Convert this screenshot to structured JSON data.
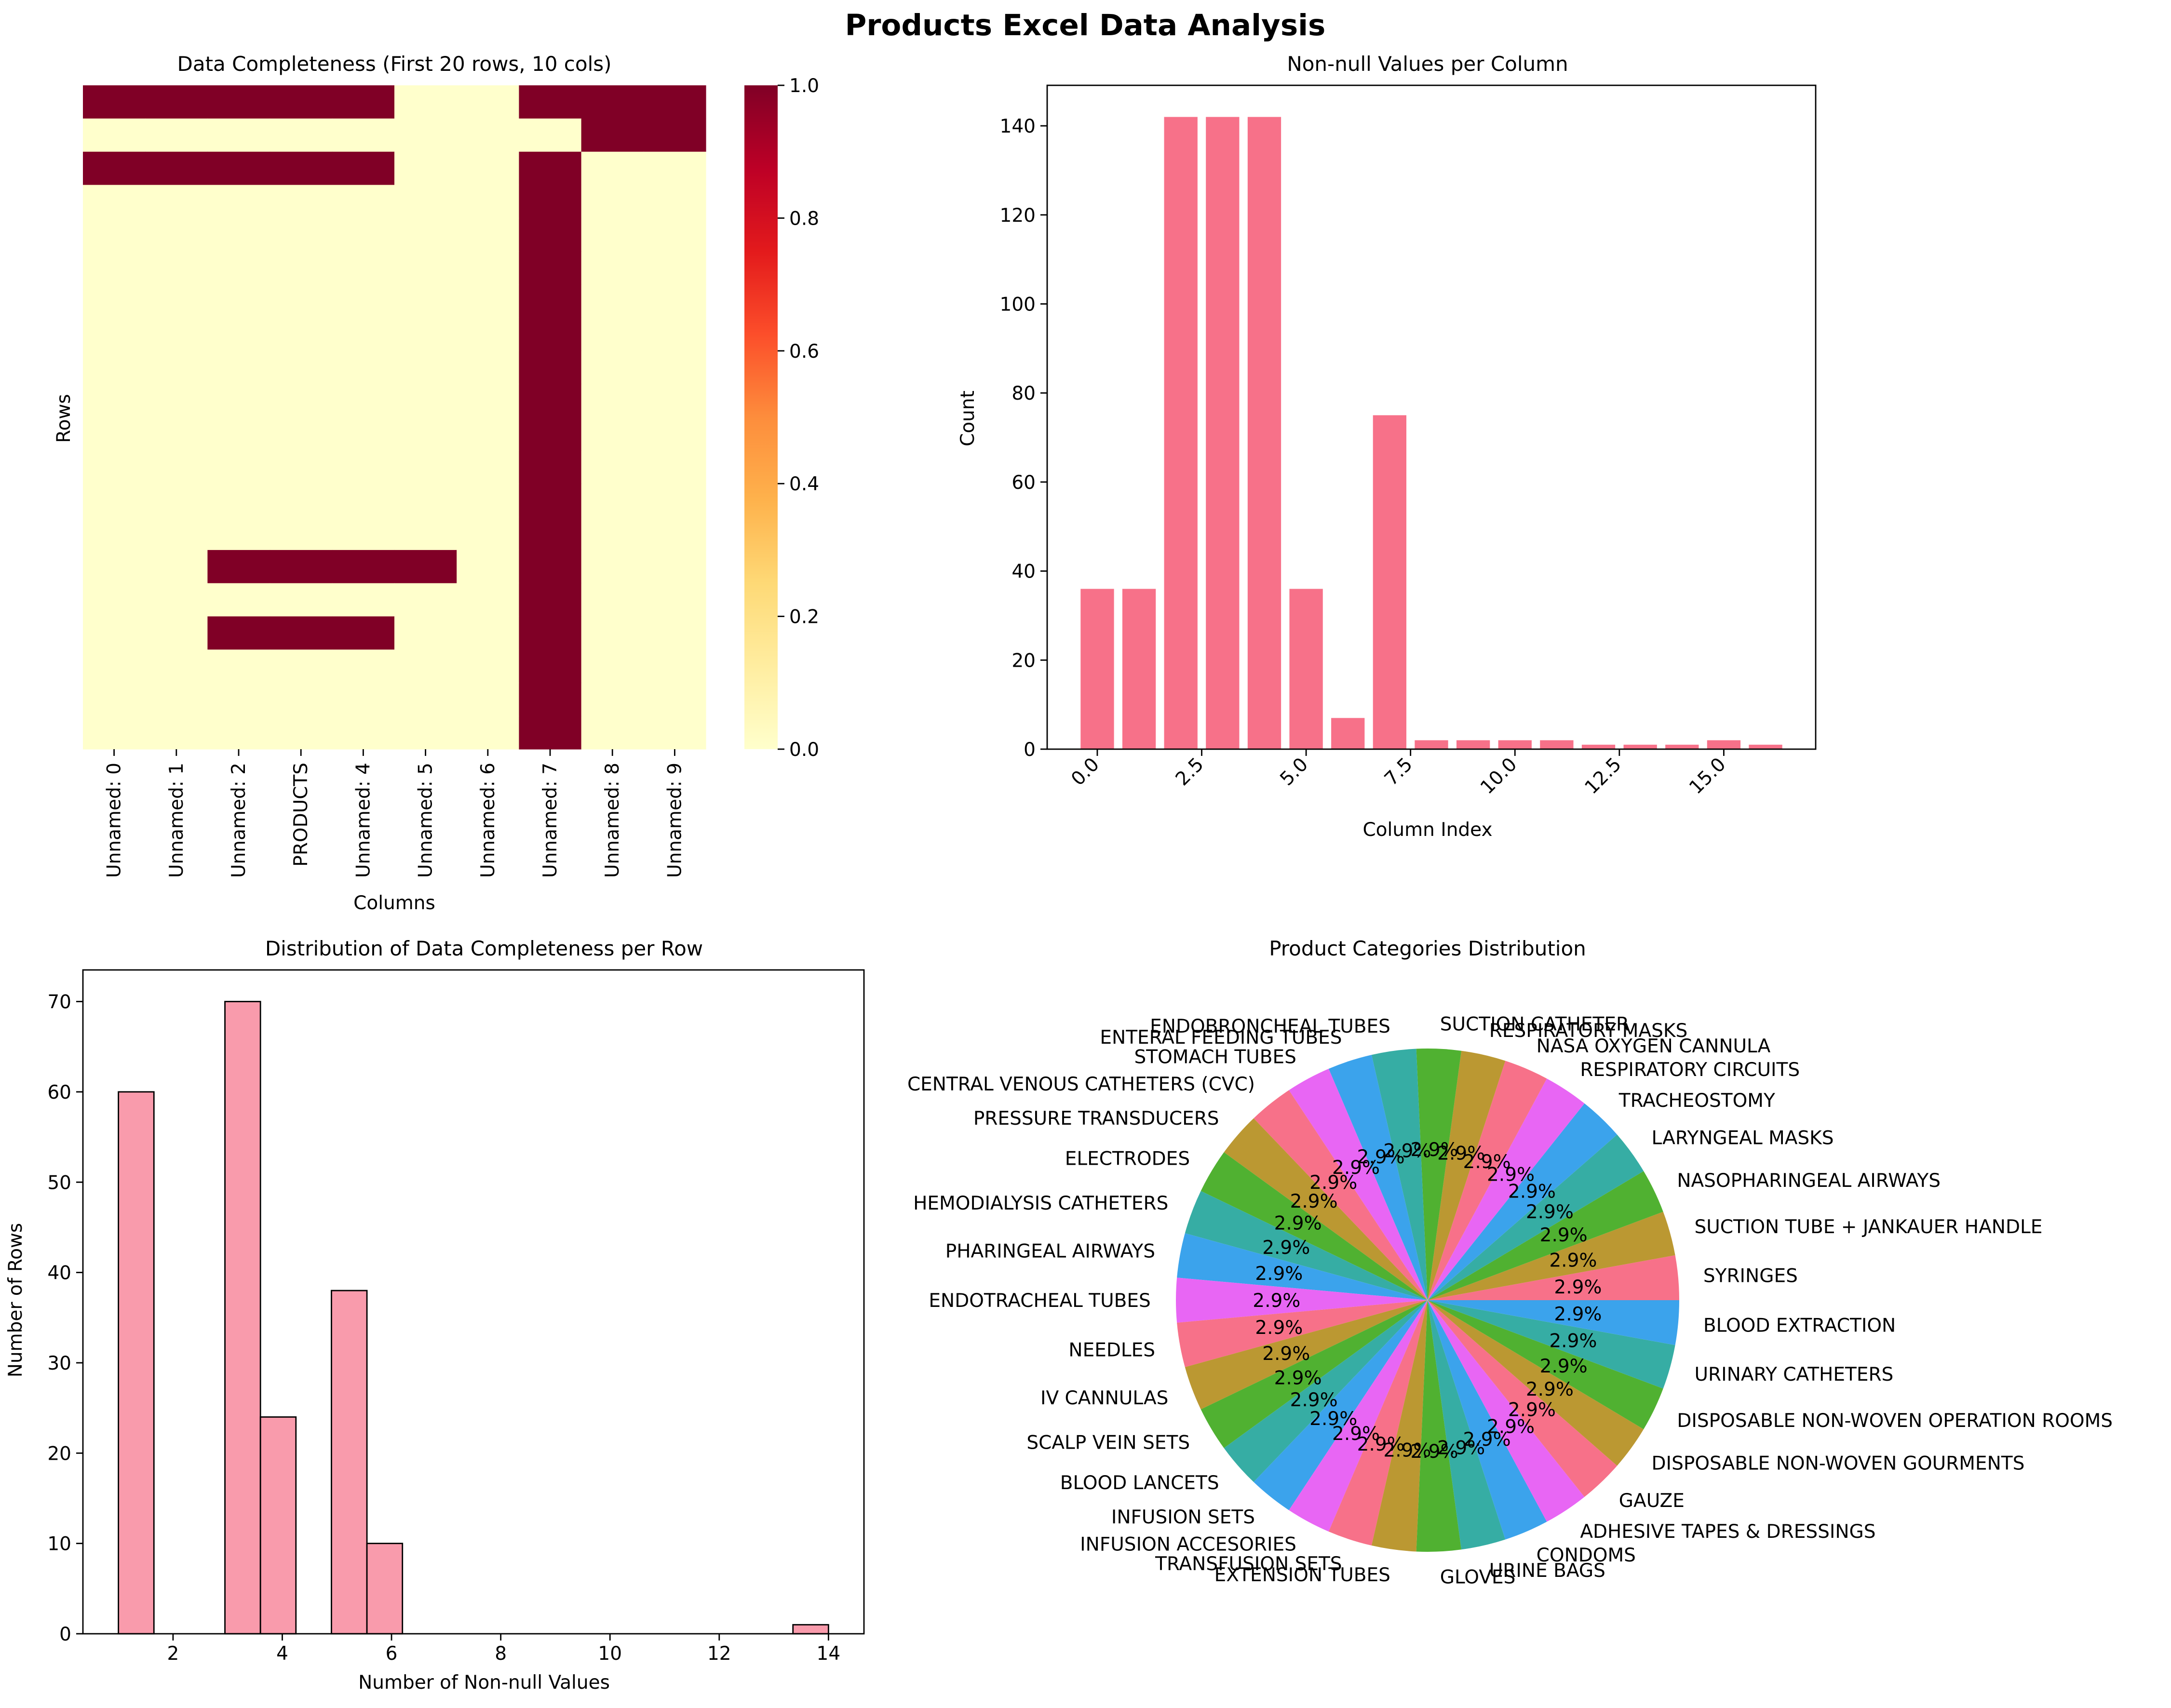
{
  "figure_title": "Products Excel Data Analysis",
  "chart_data": [
    {
      "type": "heatmap",
      "title": "Data Completeness (First 20 rows, 10 cols)",
      "xlabel": "Columns",
      "ylabel": "Rows",
      "columns": [
        "Unnamed: 0",
        "Unnamed: 1",
        "Unnamed: 2",
        "PRODUCTS",
        "Unnamed: 4",
        "Unnamed: 5",
        "Unnamed: 6",
        "Unnamed: 7",
        "Unnamed: 8",
        "Unnamed: 9"
      ],
      "matrix": [
        [
          1,
          1,
          1,
          1,
          1,
          0,
          0,
          1,
          1,
          1
        ],
        [
          0,
          0,
          0,
          0,
          0,
          0,
          0,
          0,
          1,
          1
        ],
        [
          1,
          1,
          1,
          1,
          1,
          0,
          0,
          1,
          0,
          0
        ],
        [
          0,
          0,
          0,
          0,
          0,
          0,
          0,
          1,
          0,
          0
        ],
        [
          0,
          0,
          0,
          0,
          0,
          0,
          0,
          1,
          0,
          0
        ],
        [
          0,
          0,
          0,
          0,
          0,
          0,
          0,
          1,
          0,
          0
        ],
        [
          0,
          0,
          0,
          0,
          0,
          0,
          0,
          1,
          0,
          0
        ],
        [
          0,
          0,
          0,
          0,
          0,
          0,
          0,
          1,
          0,
          0
        ],
        [
          0,
          0,
          0,
          0,
          0,
          0,
          0,
          1,
          0,
          0
        ],
        [
          0,
          0,
          0,
          0,
          0,
          0,
          0,
          1,
          0,
          0
        ],
        [
          0,
          0,
          0,
          0,
          0,
          0,
          0,
          1,
          0,
          0
        ],
        [
          0,
          0,
          0,
          0,
          0,
          0,
          0,
          1,
          0,
          0
        ],
        [
          0,
          0,
          0,
          0,
          0,
          0,
          0,
          1,
          0,
          0
        ],
        [
          0,
          0,
          0,
          0,
          0,
          0,
          0,
          1,
          0,
          0
        ],
        [
          0,
          0,
          1,
          1,
          1,
          1,
          0,
          1,
          0,
          0
        ],
        [
          0,
          0,
          0,
          0,
          0,
          0,
          0,
          1,
          0,
          0
        ],
        [
          0,
          0,
          1,
          1,
          1,
          0,
          0,
          1,
          0,
          0
        ],
        [
          0,
          0,
          0,
          0,
          0,
          0,
          0,
          1,
          0,
          0
        ],
        [
          0,
          0,
          0,
          0,
          0,
          0,
          0,
          1,
          0,
          0
        ],
        [
          0,
          0,
          0,
          0,
          0,
          0,
          0,
          1,
          0,
          0
        ]
      ],
      "colorbar": {
        "ticks": [
          "0.0",
          "0.2",
          "0.4",
          "0.6",
          "0.8",
          "1.0"
        ],
        "range": [
          0,
          1
        ],
        "colormap": "YlOrRd"
      }
    },
    {
      "type": "bar",
      "title": "Non-null Values per Column",
      "xlabel": "Column Index",
      "ylabel": "Count",
      "x": [
        0,
        1,
        2,
        3,
        4,
        5,
        6,
        7,
        8,
        9,
        10,
        11,
        12,
        13,
        14,
        15,
        16
      ],
      "values": [
        36,
        36,
        142,
        142,
        142,
        36,
        7,
        75,
        2,
        2,
        2,
        2,
        1,
        1,
        1,
        2,
        1
      ],
      "xticks": [
        "0.0",
        "2.5",
        "5.0",
        "7.5",
        "10.0",
        "12.5",
        "15.0"
      ],
      "yticks": [
        "0",
        "20",
        "40",
        "60",
        "80",
        "100",
        "120",
        "140"
      ],
      "xlim": [
        -1.2,
        17.2
      ],
      "ylim": [
        0,
        149.1
      ],
      "color": "#f77189"
    },
    {
      "type": "bar",
      "title": "Distribution of Data Completeness per Row",
      "xlabel": "Number of Non-null Values",
      "ylabel": "Number of Rows",
      "bin_edges": [
        1.0,
        1.65,
        2.3,
        2.95,
        3.6,
        4.25,
        4.9,
        5.55,
        6.2,
        6.85,
        7.5,
        8.15,
        8.8,
        9.45,
        10.1,
        10.75,
        11.4,
        12.05,
        12.7,
        13.35,
        14.0
      ],
      "values": [
        60,
        0,
        0,
        70,
        24,
        0,
        38,
        10,
        0,
        0,
        0,
        0,
        0,
        0,
        0,
        0,
        0,
        0,
        0,
        1
      ],
      "xticks": [
        "2",
        "4",
        "6",
        "8",
        "10",
        "12",
        "14"
      ],
      "yticks": [
        "0",
        "10",
        "20",
        "30",
        "40",
        "50",
        "60",
        "70"
      ],
      "xlim": [
        0.35,
        14.65
      ],
      "ylim": [
        0,
        73.5
      ],
      "color": "#f77189"
    },
    {
      "type": "pie",
      "title": "Product Categories Distribution",
      "categories": [
        "SYRINGES",
        "SUCTION TUBE + JANKAUER HANDLE",
        "NASOPHARINGEAL AIRWAYS",
        "LARYNGEAL MASKS",
        "TRACHEOSTOMY",
        "RESPIRATORY CIRCUITS",
        "NASA OXYGEN CANNULA",
        "RESPIRATORY MASKS",
        "SUCTION CATHETER",
        "ENDOBRONCHEAL TUBES",
        "ENTERAL FEEDING TUBES",
        "STOMACH TUBES",
        "CENTRAL VENOUS CATHETERS (CVC)",
        "PRESSURE TRANSDUCERS",
        "ELECTRODES",
        "HEMODIALYSIS CATHETERS",
        "PHARINGEAL AIRWAYS",
        "ENDOTRACHEAL TUBES",
        "NEEDLES",
        "IV CANNULAS",
        "SCALP VEIN SETS",
        "BLOOD LANCETS",
        "INFUSION SETS",
        "INFUSION ACCESORIES",
        "TRANSFUSION SETS",
        "EXTENSION TUBES",
        "GLOVES",
        "URINE BAGS",
        "CONDOMS",
        "ADHESIVE TAPES & DRESSINGS",
        "GAUZE",
        "DISPOSABLE NON-WOVEN GOURMENTS",
        "DISPOSABLE NON-WOVEN OPERATION ROOMS",
        "URINARY CATHETERS",
        "BLOOD EXTRACTION"
      ],
      "values": [
        1,
        1,
        1,
        1,
        1,
        1,
        1,
        1,
        1,
        1,
        1,
        1,
        1,
        1,
        1,
        1,
        1,
        1,
        1,
        1,
        1,
        1,
        1,
        1,
        1,
        1,
        1,
        1,
        1,
        1,
        1,
        1,
        1,
        1,
        1
      ],
      "pct_label": "2.9%",
      "colors": [
        "#f77189",
        "#bb9832",
        "#50b131",
        "#36ada4",
        "#3ba3ec",
        "#e866f4"
      ]
    }
  ]
}
